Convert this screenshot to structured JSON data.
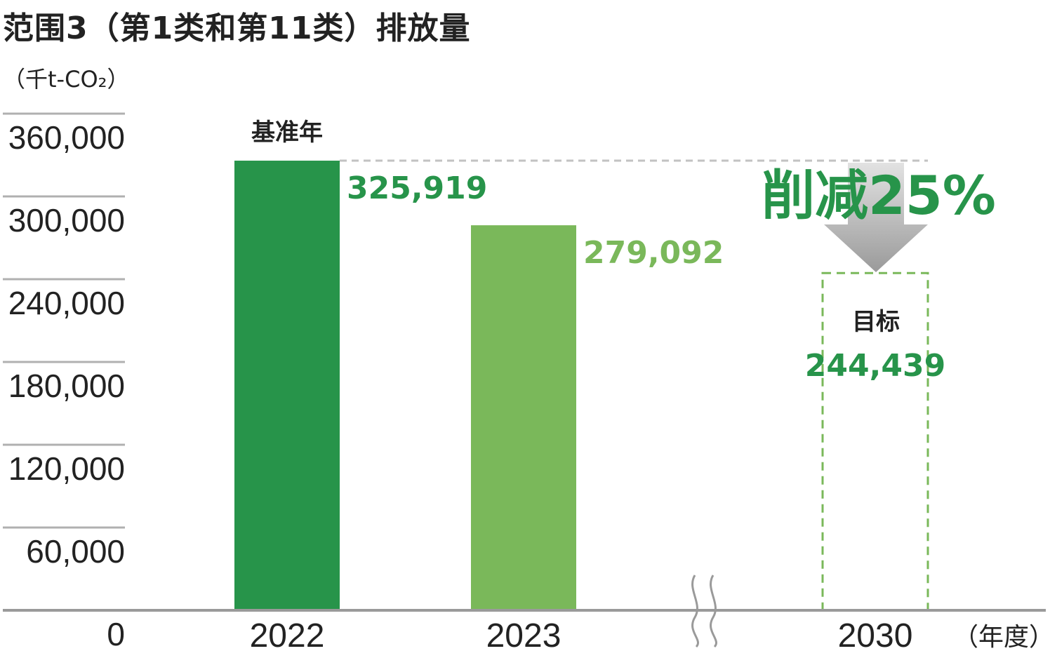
{
  "title": "范围3（第1类和第11类）排放量",
  "unit_label": "（千t-CO₂）",
  "x_unit_label": "（年度）",
  "base_year_label": "基准年",
  "target_label": "目标",
  "reduction_label": "削减25%",
  "colors": {
    "bar_2022": "#27944a",
    "bar_2023": "#7ab85a",
    "target_outline": "#7ab85a",
    "value_2022": "#27944a",
    "value_2023": "#7ab85a",
    "value_target": "#27944a",
    "reduction_text": "#27944a",
    "gridline": "#b0b0b0",
    "axis": "#9a9a9a",
    "arrow": "#a8a8a8"
  },
  "chart_data": {
    "type": "bar",
    "categories": [
      "2022",
      "2023",
      "2030"
    ],
    "values": [
      325919,
      279092,
      244439
    ],
    "value_labels": [
      "325,919",
      "279,092",
      "244,439"
    ],
    "bar_styles": [
      "solid",
      "solid",
      "dashed-outline"
    ],
    "yticks": [
      0,
      60000,
      120000,
      180000,
      240000,
      300000,
      360000
    ],
    "ytick_labels": [
      "0",
      "60,000",
      "120,000",
      "180,000",
      "240,000",
      "300,000",
      "360,000"
    ],
    "ylim": [
      0,
      360000
    ],
    "grid": true,
    "axis_break_between": [
      "2023",
      "2030"
    ]
  }
}
